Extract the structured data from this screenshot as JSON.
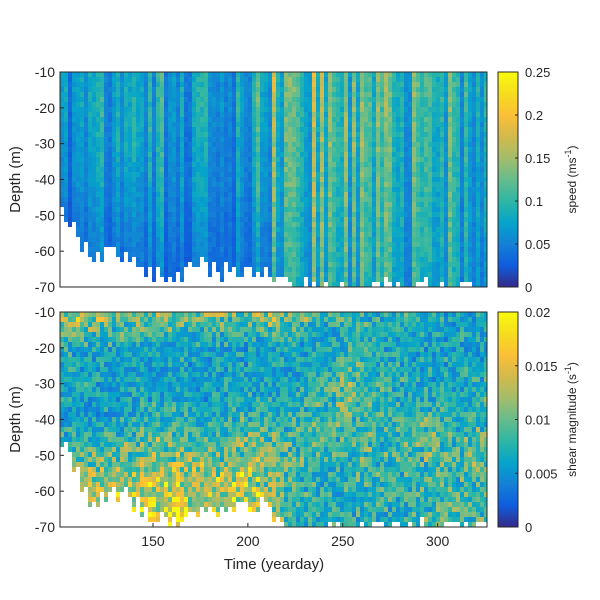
{
  "chart_data": [
    {
      "type": "heatmap",
      "title": "",
      "xlabel": "",
      "ylabel": "Depth (m)",
      "xlim": [
        101,
        326
      ],
      "ylim": [
        -70,
        -10
      ],
      "yticks": [
        "-10",
        "-20",
        "-30",
        "-40",
        "-50",
        "-60",
        "-70"
      ],
      "xticks": [],
      "colorbar": {
        "label": "speed (ms",
        "label_sup": "-1",
        "label_end": ")",
        "range": [
          0,
          0.25
        ],
        "ticks": [
          "0.25",
          "0.2",
          "0.15",
          "0.1",
          "0.05",
          "0"
        ]
      },
      "x": [
        101,
        116,
        131,
        146,
        161,
        176,
        191,
        206,
        221,
        236,
        251,
        266,
        281,
        296,
        311,
        326
      ],
      "depth": [
        -10,
        -20,
        -30,
        -40,
        -50,
        -60,
        -70
      ],
      "values": [
        [
          0.06,
          0.07,
          0.07,
          0.08,
          0.08,
          0.07,
          0.07,
          0.07,
          0.1,
          0.1,
          0.11,
          0.1,
          0.1,
          0.11,
          0.1,
          0.07
        ],
        [
          0.06,
          0.07,
          0.07,
          0.08,
          0.08,
          0.07,
          0.07,
          0.07,
          0.09,
          0.1,
          0.11,
          0.1,
          0.1,
          0.1,
          0.1,
          0.07
        ],
        [
          0.05,
          0.06,
          0.07,
          0.08,
          0.07,
          0.06,
          0.06,
          0.06,
          0.09,
          0.09,
          0.12,
          0.1,
          0.09,
          0.1,
          0.09,
          0.06
        ],
        [
          0.05,
          0.06,
          0.06,
          0.07,
          0.07,
          0.06,
          0.06,
          0.06,
          0.09,
          0.09,
          0.11,
          0.09,
          0.09,
          0.1,
          0.09,
          0.06
        ],
        [
          0.03,
          0.05,
          0.05,
          0.06,
          0.06,
          0.05,
          0.05,
          0.05,
          0.08,
          0.09,
          0.1,
          0.09,
          0.09,
          0.09,
          0.09,
          0.06
        ],
        [
          0.03,
          0.04,
          0.04,
          0.05,
          0.05,
          0.04,
          0.05,
          0.04,
          0.08,
          0.08,
          0.1,
          0.09,
          0.08,
          0.09,
          0.09,
          0.05
        ],
        [
          0.03,
          0.04,
          0.04,
          0.04,
          0.04,
          0.04,
          0.04,
          0.04,
          0.07,
          0.08,
          0.09,
          0.08,
          0.08,
          0.08,
          0.08,
          0.05
        ]
      ],
      "data_bottom_depth": [
        -47,
        -62,
        -60,
        -66,
        -68,
        -64,
        -66,
        -64,
        -70,
        -70,
        -70,
        -70,
        -70,
        -70,
        -70,
        -70
      ]
    },
    {
      "type": "heatmap",
      "title": "",
      "xlabel": "Time (yearday)",
      "ylabel": "Depth (m)",
      "xlim": [
        101,
        326
      ],
      "ylim": [
        -70,
        -10
      ],
      "yticks": [
        "-10",
        "-20",
        "-30",
        "-40",
        "-50",
        "-60",
        "-70"
      ],
      "xticks": [
        "150",
        "200",
        "250",
        "300"
      ],
      "colorbar": {
        "label": "shear magnitude (s",
        "label_sup": "-1",
        "label_end": ")",
        "range": [
          0,
          0.02
        ],
        "ticks": [
          "0.02",
          "0.015",
          "0.01",
          "0.005",
          "0"
        ]
      },
      "x": [
        101,
        116,
        131,
        146,
        161,
        176,
        191,
        206,
        221,
        236,
        251,
        266,
        281,
        296,
        311,
        326
      ],
      "depth": [
        -10,
        -20,
        -30,
        -40,
        -50,
        -60,
        -70
      ],
      "values": [
        [
          0.013,
          0.012,
          0.011,
          0.01,
          0.01,
          0.009,
          0.01,
          0.01,
          0.012,
          0.008,
          0.008,
          0.007,
          0.007,
          0.007,
          0.006,
          0.006
        ],
        [
          0.007,
          0.006,
          0.006,
          0.006,
          0.006,
          0.006,
          0.006,
          0.006,
          0.006,
          0.006,
          0.007,
          0.007,
          0.006,
          0.006,
          0.006,
          0.006
        ],
        [
          0.006,
          0.006,
          0.005,
          0.006,
          0.006,
          0.005,
          0.006,
          0.006,
          0.006,
          0.007,
          0.01,
          0.008,
          0.007,
          0.006,
          0.006,
          0.007
        ],
        [
          0.006,
          0.006,
          0.006,
          0.007,
          0.008,
          0.006,
          0.007,
          0.008,
          0.007,
          0.008,
          0.008,
          0.008,
          0.008,
          0.008,
          0.007,
          0.008
        ],
        [
          0.008,
          0.009,
          0.009,
          0.01,
          0.011,
          0.009,
          0.01,
          0.011,
          0.009,
          0.008,
          0.008,
          0.008,
          0.008,
          0.009,
          0.009,
          0.009
        ],
        [
          0.011,
          0.012,
          0.012,
          0.013,
          0.014,
          0.012,
          0.013,
          0.013,
          0.008,
          0.007,
          0.007,
          0.007,
          0.007,
          0.008,
          0.008,
          0.008
        ],
        [
          0.014,
          0.015,
          0.015,
          0.016,
          0.016,
          0.015,
          0.015,
          0.015,
          0.008,
          0.007,
          0.007,
          0.007,
          0.007,
          0.008,
          0.008,
          0.009
        ]
      ],
      "data_bottom_depth": [
        -45,
        -62,
        -60,
        -66,
        -70,
        -64,
        -66,
        -64,
        -70,
        -70,
        -70,
        -70,
        -70,
        -70,
        -70,
        -70
      ]
    }
  ]
}
